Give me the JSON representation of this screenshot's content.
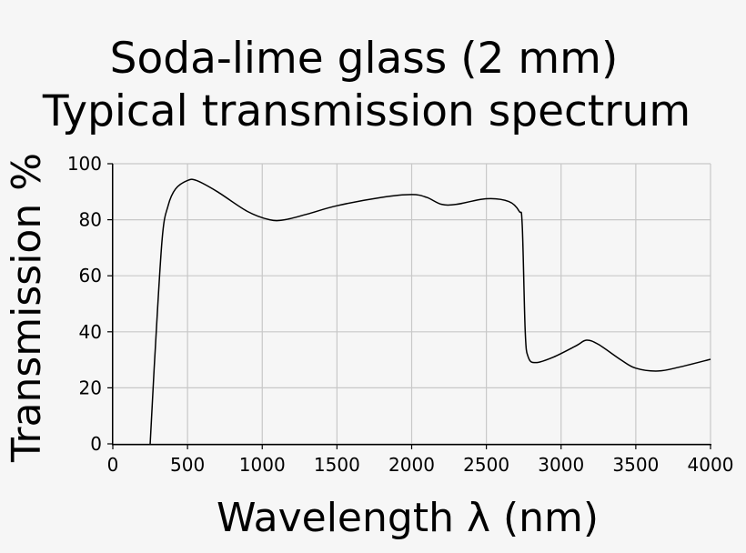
{
  "chart_data": {
    "type": "line",
    "title": [
      "Soda-lime glass (2 mm)",
      "Typical transmission spectrum"
    ],
    "xlabel": "Wavelength λ (nm)",
    "ylabel": "Transmission %",
    "xlim": [
      0,
      4000
    ],
    "ylim": [
      0,
      100
    ],
    "xticks": [
      0,
      500,
      1000,
      1500,
      2000,
      2500,
      3000,
      3500,
      4000
    ],
    "yticks": [
      0,
      20,
      40,
      60,
      80,
      100
    ],
    "grid": true,
    "line_color": "#000000",
    "series": [
      {
        "x": [
          250,
          280,
          330,
          370,
          420,
          500,
          560,
          700,
          900,
          1050,
          1150,
          1300,
          1500,
          1800,
          2000,
          2100,
          2200,
          2300,
          2500,
          2650,
          2720,
          2740,
          2760,
          2780,
          2830,
          2950,
          3100,
          3170,
          3250,
          3400,
          3500,
          3650,
          3800,
          4000
        ],
        "y": [
          0,
          30,
          73,
          85,
          91,
          94,
          94,
          90,
          83,
          80,
          80,
          82,
          85,
          88,
          89,
          88,
          85.5,
          85.5,
          87.5,
          86.5,
          83,
          78,
          40,
          31,
          29,
          31,
          35,
          37,
          35.5,
          30,
          27,
          26,
          27.5,
          30.2
        ]
      }
    ]
  }
}
